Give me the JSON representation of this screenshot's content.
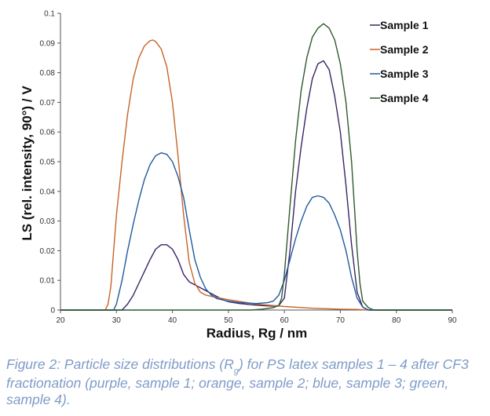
{
  "chart_data": {
    "type": "line",
    "title": "",
    "xlabel": "Radius, Rg / nm",
    "ylabel": "LS (rel. intensity, 90°) / V",
    "xlim": [
      20,
      90
    ],
    "ylim": [
      0,
      0.1
    ],
    "xticks": [
      "20",
      "30",
      "40",
      "50",
      "60",
      "70",
      "80",
      "90"
    ],
    "yticks": [
      "0",
      "0.01",
      "0.02",
      "0.03",
      "0.04",
      "0.05",
      "0.06",
      "0.07",
      "0.08",
      "0.09",
      "0.1"
    ],
    "grid": false,
    "legend_position": "top-right",
    "series": [
      {
        "name": "Sample 1",
        "color": "#3a2466",
        "points": [
          [
            20,
            0
          ],
          [
            29,
            0
          ],
          [
            30,
            0
          ],
          [
            31,
            0
          ],
          [
            32,
            0.002
          ],
          [
            33,
            0.005
          ],
          [
            34,
            0.009
          ],
          [
            35,
            0.013
          ],
          [
            36,
            0.017
          ],
          [
            37,
            0.0205
          ],
          [
            38,
            0.022
          ],
          [
            39,
            0.022
          ],
          [
            40,
            0.0205
          ],
          [
            41,
            0.017
          ],
          [
            42,
            0.012
          ],
          [
            43,
            0.0095
          ],
          [
            44,
            0.0085
          ],
          [
            45,
            0.0075
          ],
          [
            46,
            0.0065
          ],
          [
            47,
            0.0055
          ],
          [
            48,
            0.0045
          ],
          [
            49,
            0.0035
          ],
          [
            50,
            0.0028
          ],
          [
            52,
            0.0022
          ],
          [
            54,
            0.0018
          ],
          [
            56,
            0.0015
          ],
          [
            58,
            0.0013
          ],
          [
            59,
            0.0015
          ],
          [
            60,
            0.004
          ],
          [
            61,
            0.02
          ],
          [
            62,
            0.04
          ],
          [
            63,
            0.055
          ],
          [
            64,
            0.068
          ],
          [
            65,
            0.078
          ],
          [
            66,
            0.083
          ],
          [
            67,
            0.084
          ],
          [
            68,
            0.081
          ],
          [
            69,
            0.072
          ],
          [
            70,
            0.06
          ],
          [
            71,
            0.042
          ],
          [
            72,
            0.022
          ],
          [
            73,
            0.006
          ],
          [
            74,
            0.001
          ],
          [
            75,
            0
          ],
          [
            80,
            0
          ],
          [
            90,
            0
          ]
        ]
      },
      {
        "name": "Sample 2",
        "color": "#c8642a",
        "points": [
          [
            20,
            0
          ],
          [
            28,
            0
          ],
          [
            28.5,
            0.002
          ],
          [
            29,
            0.008
          ],
          [
            29.5,
            0.02
          ],
          [
            30,
            0.032
          ],
          [
            31,
            0.05
          ],
          [
            32,
            0.066
          ],
          [
            33,
            0.078
          ],
          [
            34,
            0.085
          ],
          [
            35,
            0.089
          ],
          [
            36,
            0.0908
          ],
          [
            36.5,
            0.091
          ],
          [
            37,
            0.0905
          ],
          [
            38,
            0.088
          ],
          [
            39,
            0.082
          ],
          [
            40,
            0.07
          ],
          [
            41,
            0.052
          ],
          [
            42,
            0.032
          ],
          [
            43,
            0.016
          ],
          [
            44,
            0.009
          ],
          [
            45,
            0.006
          ],
          [
            46,
            0.005
          ],
          [
            48,
            0.0042
          ],
          [
            50,
            0.0035
          ],
          [
            55,
            0.002
          ],
          [
            60,
            0.0012
          ],
          [
            65,
            0.0006
          ],
          [
            70,
            0.0003
          ],
          [
            73,
            0.0002
          ],
          [
            75,
            0
          ],
          [
            90,
            0
          ]
        ]
      },
      {
        "name": "Sample 3",
        "color": "#1f5a9e",
        "points": [
          [
            20,
            0
          ],
          [
            29.5,
            0
          ],
          [
            30,
            0.002
          ],
          [
            31,
            0.01
          ],
          [
            32,
            0.02
          ],
          [
            33,
            0.029
          ],
          [
            34,
            0.037
          ],
          [
            35,
            0.044
          ],
          [
            36,
            0.049
          ],
          [
            37,
            0.052
          ],
          [
            38,
            0.053
          ],
          [
            39,
            0.0525
          ],
          [
            40,
            0.05
          ],
          [
            41,
            0.045
          ],
          [
            42,
            0.038
          ],
          [
            43,
            0.027
          ],
          [
            44,
            0.017
          ],
          [
            45,
            0.011
          ],
          [
            46,
            0.007
          ],
          [
            47,
            0.005
          ],
          [
            48,
            0.0038
          ],
          [
            50,
            0.003
          ],
          [
            52,
            0.0025
          ],
          [
            55,
            0.0022
          ],
          [
            57,
            0.0025
          ],
          [
            58,
            0.003
          ],
          [
            59,
            0.005
          ],
          [
            60,
            0.01
          ],
          [
            61,
            0.017
          ],
          [
            62,
            0.024
          ],
          [
            63,
            0.03
          ],
          [
            64,
            0.035
          ],
          [
            65,
            0.038
          ],
          [
            66,
            0.0385
          ],
          [
            67,
            0.038
          ],
          [
            68,
            0.036
          ],
          [
            69,
            0.032
          ],
          [
            70,
            0.027
          ],
          [
            71,
            0.02
          ],
          [
            72,
            0.011
          ],
          [
            73,
            0.004
          ],
          [
            74,
            0.001
          ],
          [
            75,
            0
          ],
          [
            90,
            0
          ]
        ]
      },
      {
        "name": "Sample 4",
        "color": "#2f5a2f",
        "points": [
          [
            20,
            0
          ],
          [
            54,
            0
          ],
          [
            56,
            0.0003
          ],
          [
            58,
            0.0008
          ],
          [
            59,
            0.0015
          ],
          [
            59.5,
            0.004
          ],
          [
            60,
            0.012
          ],
          [
            61,
            0.035
          ],
          [
            62,
            0.057
          ],
          [
            63,
            0.074
          ],
          [
            64,
            0.085
          ],
          [
            65,
            0.092
          ],
          [
            66,
            0.095
          ],
          [
            67,
            0.0965
          ],
          [
            68,
            0.095
          ],
          [
            69,
            0.091
          ],
          [
            70,
            0.083
          ],
          [
            71,
            0.07
          ],
          [
            72,
            0.05
          ],
          [
            72.5,
            0.035
          ],
          [
            73,
            0.02
          ],
          [
            73.5,
            0.009
          ],
          [
            74,
            0.003
          ],
          [
            75,
            0.0008
          ],
          [
            76,
            0
          ],
          [
            90,
            0
          ]
        ]
      }
    ]
  },
  "caption": {
    "before_sub": "Figure 2: Particle size distributions (R",
    "sub": "g",
    "after_sub": ") for PS latex samples 1 – 4 after CF3 fractionation (purple, sample 1; orange, sample 2; blue, sample 3; green, sample 4)."
  }
}
